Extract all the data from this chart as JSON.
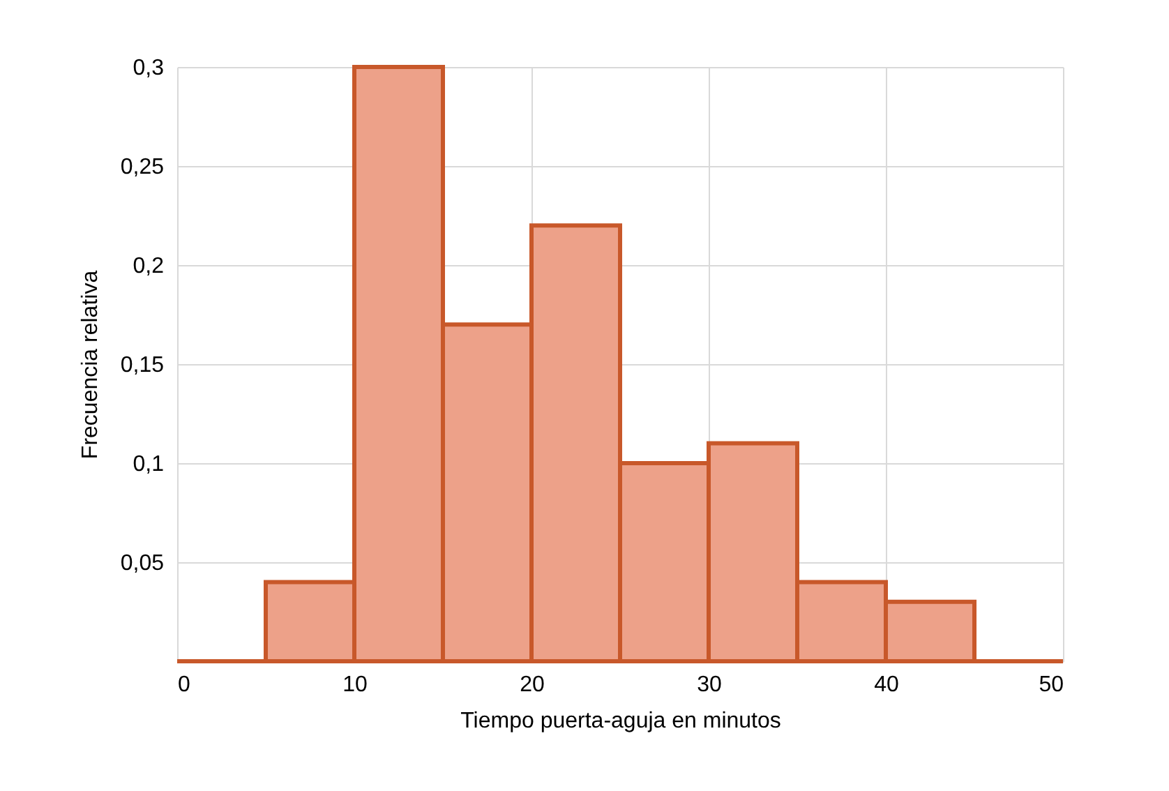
{
  "chart_data": {
    "type": "histogram",
    "xlabel": "Tiempo puerta-aguja en minutos",
    "ylabel": "Frecuencia relativa",
    "bins": [
      0,
      5,
      10,
      15,
      20,
      25,
      30,
      35,
      40,
      45,
      50
    ],
    "values": [
      0,
      0.04,
      0.3,
      0.17,
      0.22,
      0.1,
      0.11,
      0.04,
      0.03,
      0
    ],
    "colors": [
      "#c8582a",
      "#eda189",
      "#eda189",
      "#eda189",
      "#eda189",
      "#eda189",
      "#eda189",
      "#eda189",
      "#eda189",
      "#c8582a"
    ],
    "xlim": [
      0,
      50
    ],
    "xticks": [
      0,
      10,
      20,
      30,
      40,
      50
    ],
    "ylim": [
      0,
      0.3
    ],
    "yticks": [
      {
        "value": 0,
        "label": null
      },
      {
        "value": 0.05,
        "label": "0,05"
      },
      {
        "value": 0.1,
        "label": "0,1"
      },
      {
        "value": 0.15,
        "label": "0,15"
      },
      {
        "value": 0.2,
        "label": "0,2"
      },
      {
        "value": 0.25,
        "label": "0,25"
      },
      {
        "value": 0.3,
        "label": "0,3"
      }
    ],
    "grid": true
  }
}
